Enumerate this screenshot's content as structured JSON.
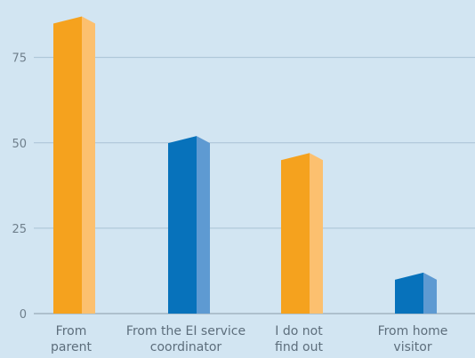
{
  "chart_data": {
    "type": "bar",
    "title": "",
    "xlabel": "",
    "ylabel": "",
    "ylim": [
      0,
      90
    ],
    "yticks": [
      0,
      25,
      50,
      75
    ],
    "grid": true,
    "categories": [
      [
        "From",
        "parent"
      ],
      [
        "From the EI service",
        "coordinator"
      ],
      [
        "I do not",
        "find out"
      ],
      [
        "From home",
        "visitor"
      ]
    ],
    "values": [
      87,
      52,
      47,
      12
    ],
    "bar_colors": [
      "#f5a21e",
      "#0772bb",
      "#f5a21e",
      "#0772bb"
    ],
    "bar_side_colors": [
      "#fcc06f",
      "#5e9ad2",
      "#fcc06f",
      "#5e9ad2"
    ]
  }
}
